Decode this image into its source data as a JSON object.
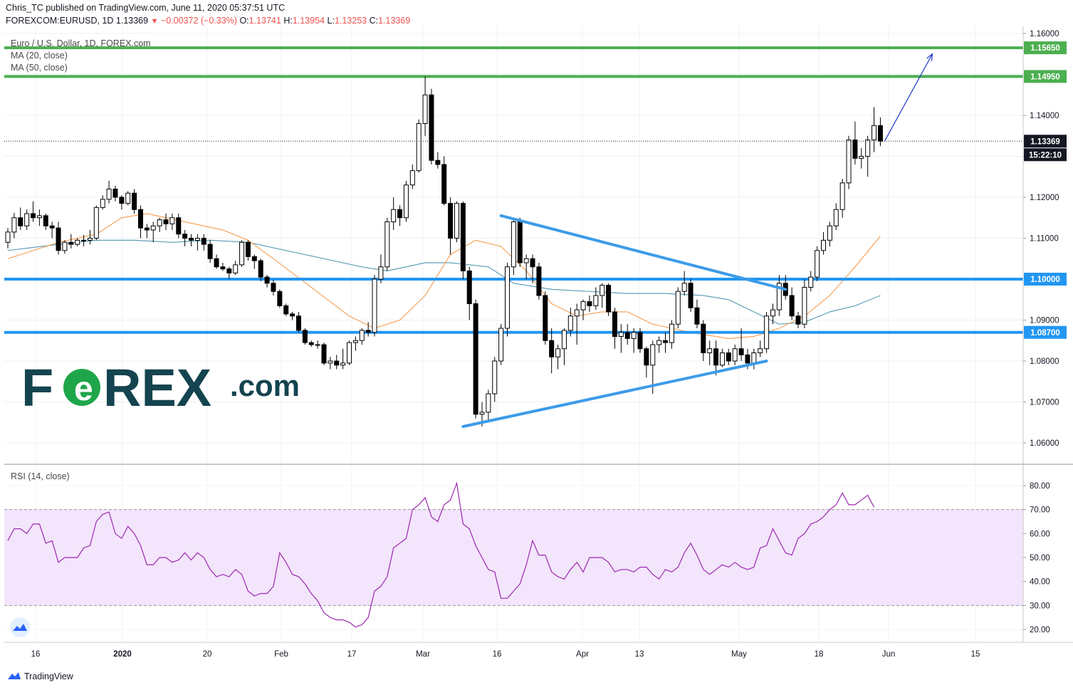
{
  "header": {
    "publisher_line": "Chris_TC published on TradingView.com, June 11, 2020 05:37:51 UTC",
    "symbol": "FOREXCOM:EURUSD, 1D",
    "last": "1.13369",
    "change": "−0.00372 (−0.33%)",
    "o_label": "O:",
    "o": "1.13741",
    "h_label": "H:",
    "h": "1.13954",
    "l_label": "L:",
    "l": "1.13253",
    "c_label": "C:",
    "c": "1.13369"
  },
  "legend": {
    "title": "Euro / U.S. Dollar, 1D, FOREX.com",
    "ma20": "MA (20, close)",
    "ma50": "MA (50, close)",
    "rsi": "RSI (14, close)"
  },
  "watermark": {
    "brand": "F0REX",
    "suffix": ".com"
  },
  "footer": {
    "brand": "TradingView"
  },
  "colors": {
    "green_level": "#4caf50",
    "blue_level": "#2196f3",
    "trendline": "#3d9be9",
    "ma20": "#f7a35c",
    "ma50": "#5f9fb8",
    "rsi_line": "#9c27b0",
    "rsi_band": "#f3e5fb",
    "watermark_dark": "#13444f",
    "watermark_green": "#1fa64a",
    "arrow": "#1e37c9"
  },
  "chart_data": {
    "type": "candlestick",
    "symbol": "EURUSD",
    "timeframe": "1D",
    "price_axis": {
      "ticks": [
        "1.16000",
        "1.14000",
        "1.13000",
        "1.12000",
        "1.11000",
        "1.09000",
        "1.08000",
        "1.07000",
        "1.06000"
      ],
      "range": [
        1.055,
        1.162
      ]
    },
    "x_axis": {
      "ticks": [
        "16",
        "2020",
        "20",
        "Feb",
        "17",
        "Mar",
        "16",
        "Apr",
        "13",
        "May",
        "18",
        "Jun",
        "15"
      ]
    },
    "levels": [
      {
        "label": "1.15650",
        "value": 1.1565,
        "color": "green"
      },
      {
        "label": "1.14950",
        "value": 1.1495,
        "color": "green"
      },
      {
        "label": "1.10000",
        "value": 1.1,
        "color": "blue"
      },
      {
        "label": "1.08700",
        "value": 1.087,
        "color": "blue"
      }
    ],
    "last_price_label": "1.13369",
    "last_price": 1.13369,
    "countdown": "15:22:10",
    "candles": [
      [
        1.109,
        1.1125,
        1.1075,
        1.1115
      ],
      [
        1.1115,
        1.1162,
        1.11,
        1.115
      ],
      [
        1.115,
        1.1175,
        1.112,
        1.113
      ],
      [
        1.113,
        1.117,
        1.112,
        1.116
      ],
      [
        1.116,
        1.119,
        1.114,
        1.115
      ],
      [
        1.115,
        1.117,
        1.113,
        1.1155
      ],
      [
        1.1155,
        1.116,
        1.112,
        1.113
      ],
      [
        1.113,
        1.114,
        1.11,
        1.1125
      ],
      [
        1.1125,
        1.114,
        1.106,
        1.107
      ],
      [
        1.107,
        1.1095,
        1.1062,
        1.109
      ],
      [
        1.109,
        1.111,
        1.1075,
        1.1085
      ],
      [
        1.1085,
        1.11,
        1.108,
        1.1095
      ],
      [
        1.1095,
        1.1108,
        1.108,
        1.1095
      ],
      [
        1.1095,
        1.112,
        1.1085,
        1.11
      ],
      [
        1.11,
        1.118,
        1.1095,
        1.1175
      ],
      [
        1.1175,
        1.1205,
        1.117,
        1.1195
      ],
      [
        1.1195,
        1.124,
        1.1185,
        1.122
      ],
      [
        1.122,
        1.1228,
        1.119,
        1.12
      ],
      [
        1.12,
        1.1205,
        1.117,
        1.1185
      ],
      [
        1.1185,
        1.1215,
        1.118,
        1.121
      ],
      [
        1.121,
        1.122,
        1.116,
        1.117
      ],
      [
        1.117,
        1.118,
        1.11,
        1.1125
      ],
      [
        1.1125,
        1.1135,
        1.11,
        1.112
      ],
      [
        1.112,
        1.114,
        1.109,
        1.113
      ],
      [
        1.113,
        1.115,
        1.1115,
        1.1145
      ],
      [
        1.1145,
        1.116,
        1.112,
        1.1135
      ],
      [
        1.1135,
        1.116,
        1.112,
        1.115
      ],
      [
        1.115,
        1.116,
        1.11,
        1.111
      ],
      [
        1.111,
        1.112,
        1.108,
        1.11
      ],
      [
        1.11,
        1.111,
        1.108,
        1.1095
      ],
      [
        1.1095,
        1.111,
        1.107,
        1.11
      ],
      [
        1.11,
        1.111,
        1.107,
        1.1085
      ],
      [
        1.1085,
        1.1095,
        1.104,
        1.105
      ],
      [
        1.105,
        1.106,
        1.1025,
        1.103
      ],
      [
        1.103,
        1.104,
        1.102,
        1.1025
      ],
      [
        1.1025,
        1.103,
        1.1,
        1.1015
      ],
      [
        1.1015,
        1.1045,
        1.101,
        1.1035
      ],
      [
        1.1035,
        1.1095,
        1.103,
        1.109
      ],
      [
        1.109,
        1.1095,
        1.1045,
        1.1055
      ],
      [
        1.1055,
        1.106,
        1.1025,
        1.1045
      ],
      [
        1.1045,
        1.105,
        1.0995,
        1.1005
      ],
      [
        1.1005,
        1.101,
        1.098,
        1.099
      ],
      [
        1.099,
        1.0998,
        1.096,
        1.097
      ],
      [
        1.097,
        1.0975,
        1.093,
        1.0935
      ],
      [
        1.0935,
        1.094,
        1.091,
        1.0915
      ],
      [
        1.0915,
        1.092,
        1.09,
        1.091
      ],
      [
        1.091,
        1.092,
        1.087,
        1.0875
      ],
      [
        1.0875,
        1.088,
        1.084,
        1.0845
      ],
      [
        1.0845,
        1.085,
        1.0835,
        1.084
      ],
      [
        1.084,
        1.085,
        1.083,
        1.084
      ],
      [
        1.084,
        1.0845,
        1.079,
        1.0795
      ],
      [
        1.0795,
        1.081,
        1.078,
        1.08
      ],
      [
        1.08,
        1.0815,
        1.078,
        1.079
      ],
      [
        1.079,
        1.083,
        1.078,
        1.0795
      ],
      [
        1.0795,
        1.085,
        1.079,
        1.0845
      ],
      [
        1.0845,
        1.086,
        1.0825,
        1.085
      ],
      [
        1.085,
        1.088,
        1.084,
        1.0875
      ],
      [
        1.0875,
        1.0895,
        1.086,
        1.087
      ],
      [
        1.087,
        1.101,
        1.086,
        1.1
      ],
      [
        1.1,
        1.106,
        1.099,
        1.103
      ],
      [
        1.103,
        1.115,
        1.102,
        1.114
      ],
      [
        1.114,
        1.12,
        1.112,
        1.117
      ],
      [
        1.117,
        1.118,
        1.113,
        1.115
      ],
      [
        1.115,
        1.124,
        1.114,
        1.123
      ],
      [
        1.123,
        1.128,
        1.122,
        1.1265
      ],
      [
        1.1265,
        1.139,
        1.126,
        1.138
      ],
      [
        1.138,
        1.1495,
        1.135,
        1.145
      ],
      [
        1.145,
        1.1465,
        1.128,
        1.129
      ],
      [
        1.129,
        1.131,
        1.127,
        1.128
      ],
      [
        1.128,
        1.13,
        1.118,
        1.1185
      ],
      [
        1.1185,
        1.12,
        1.106,
        1.11
      ],
      [
        1.11,
        1.119,
        1.109,
        1.1185
      ],
      [
        1.1185,
        1.119,
        1.1,
        1.102
      ],
      [
        1.102,
        1.103,
        1.09,
        1.094
      ],
      [
        1.094,
        1.095,
        1.066,
        1.067
      ],
      [
        1.067,
        1.07,
        1.064,
        1.0675
      ],
      [
        1.0675,
        1.073,
        1.065,
        1.072
      ],
      [
        1.072,
        1.081,
        1.07,
        1.08
      ],
      [
        1.08,
        1.089,
        1.079,
        1.088
      ],
      [
        1.088,
        1.104,
        1.086,
        1.103
      ],
      [
        1.103,
        1.115,
        1.101,
        1.114
      ],
      [
        1.114,
        1.115,
        1.103,
        1.104
      ],
      [
        1.104,
        1.106,
        1.1,
        1.105
      ],
      [
        1.105,
        1.106,
        1.099,
        1.103
      ],
      [
        1.103,
        1.104,
        1.095,
        1.096
      ],
      [
        1.096,
        1.097,
        1.084,
        1.085
      ],
      [
        1.085,
        1.088,
        1.077,
        1.081
      ],
      [
        1.081,
        1.084,
        1.078,
        1.083
      ],
      [
        1.083,
        1.088,
        1.079,
        1.0875
      ],
      [
        1.0875,
        1.093,
        1.086,
        1.091
      ],
      [
        1.091,
        1.094,
        1.084,
        1.0925
      ],
      [
        1.0925,
        1.095,
        1.09,
        1.0945
      ],
      [
        1.0945,
        1.096,
        1.092,
        1.0935
      ],
      [
        1.0935,
        1.098,
        1.0925,
        1.096
      ],
      [
        1.096,
        1.099,
        1.093,
        1.0985
      ],
      [
        1.0985,
        1.099,
        1.091,
        1.092
      ],
      [
        1.092,
        1.093,
        1.083,
        1.086
      ],
      [
        1.086,
        1.089,
        1.082,
        1.087
      ],
      [
        1.087,
        1.089,
        1.084,
        1.0855
      ],
      [
        1.0855,
        1.088,
        1.082,
        1.087
      ],
      [
        1.087,
        1.088,
        1.082,
        1.083
      ],
      [
        1.083,
        1.0835,
        1.076,
        1.079
      ],
      [
        1.079,
        1.085,
        1.072,
        1.084
      ],
      [
        1.084,
        1.086,
        1.082,
        1.085
      ],
      [
        1.085,
        1.087,
        1.082,
        1.0845
      ],
      [
        1.0845,
        1.09,
        1.083,
        1.089
      ],
      [
        1.089,
        1.098,
        1.088,
        1.097
      ],
      [
        1.097,
        1.102,
        1.096,
        1.099
      ],
      [
        1.099,
        1.1,
        1.092,
        1.093
      ],
      [
        1.093,
        1.095,
        1.088,
        1.089
      ],
      [
        1.089,
        1.09,
        1.08,
        1.082
      ],
      [
        1.082,
        1.085,
        1.079,
        1.083
      ],
      [
        1.083,
        1.085,
        1.0765,
        1.079
      ],
      [
        1.079,
        1.083,
        1.0785,
        1.082
      ],
      [
        1.082,
        1.083,
        1.079,
        1.08
      ],
      [
        1.08,
        1.084,
        1.079,
        1.083
      ],
      [
        1.083,
        1.088,
        1.08,
        1.0815
      ],
      [
        1.0815,
        1.083,
        1.078,
        1.0795
      ],
      [
        1.0795,
        1.083,
        1.078,
        1.082
      ],
      [
        1.082,
        1.085,
        1.081,
        1.083
      ],
      [
        1.083,
        1.092,
        1.082,
        1.091
      ],
      [
        1.091,
        1.094,
        1.089,
        1.0925
      ],
      [
        1.0925,
        1.101,
        1.091,
        1.099
      ],
      [
        1.099,
        1.101,
        1.095,
        1.096
      ],
      [
        1.096,
        1.098,
        1.09,
        1.091
      ],
      [
        1.091,
        1.092,
        1.088,
        1.089
      ],
      [
        1.089,
        1.1,
        1.088,
        1.098
      ],
      [
        1.098,
        1.102,
        1.097,
        1.1005
      ],
      [
        1.1005,
        1.108,
        1.0995,
        1.107
      ],
      [
        1.107,
        1.1115,
        1.106,
        1.1095
      ],
      [
        1.1095,
        1.114,
        1.108,
        1.113
      ],
      [
        1.113,
        1.1185,
        1.112,
        1.117
      ],
      [
        1.117,
        1.1245,
        1.115,
        1.1235
      ],
      [
        1.1235,
        1.135,
        1.122,
        1.134
      ],
      [
        1.134,
        1.1385,
        1.128,
        1.1295
      ],
      [
        1.1295,
        1.132,
        1.127,
        1.13
      ],
      [
        1.13,
        1.135,
        1.125,
        1.134
      ],
      [
        1.134,
        1.142,
        1.131,
        1.1375
      ],
      [
        1.1375,
        1.1395,
        1.1325,
        1.1337
      ]
    ],
    "ma20": [
      [
        0,
        1.105
      ],
      [
        8,
        1.109
      ],
      [
        14,
        1.111
      ],
      [
        18,
        1.115
      ],
      [
        22,
        1.116
      ],
      [
        28,
        1.114
      ],
      [
        34,
        1.112
      ],
      [
        38,
        1.1095
      ],
      [
        42,
        1.105
      ],
      [
        48,
        1.098
      ],
      [
        54,
        1.091
      ],
      [
        58,
        1.088
      ],
      [
        62,
        1.09
      ],
      [
        66,
        1.096
      ],
      [
        70,
        1.106
      ],
      [
        74,
        1.1095
      ],
      [
        78,
        1.108
      ],
      [
        82,
        1.102
      ],
      [
        86,
        1.094
      ],
      [
        90,
        1.091
      ],
      [
        94,
        1.092
      ],
      [
        98,
        1.092
      ],
      [
        102,
        1.089
      ],
      [
        108,
        1.087
      ],
      [
        114,
        1.0855
      ],
      [
        118,
        1.086
      ],
      [
        122,
        1.088
      ],
      [
        126,
        1.091
      ],
      [
        130,
        1.096
      ],
      [
        134,
        1.103
      ],
      [
        138,
        1.1105
      ]
    ],
    "ma50": [
      [
        0,
        1.107
      ],
      [
        8,
        1.1085
      ],
      [
        14,
        1.1095
      ],
      [
        20,
        1.1095
      ],
      [
        26,
        1.109
      ],
      [
        32,
        1.1095
      ],
      [
        38,
        1.109
      ],
      [
        44,
        1.107
      ],
      [
        50,
        1.105
      ],
      [
        56,
        1.103
      ],
      [
        60,
        1.102
      ],
      [
        66,
        1.104
      ],
      [
        70,
        1.104
      ],
      [
        76,
        1.103
      ],
      [
        80,
        1.099
      ],
      [
        86,
        1.0975
      ],
      [
        92,
        1.097
      ],
      [
        98,
        1.0965
      ],
      [
        104,
        1.0965
      ],
      [
        110,
        1.096
      ],
      [
        114,
        1.095
      ],
      [
        118,
        1.092
      ],
      [
        122,
        1.089
      ],
      [
        126,
        1.0895
      ],
      [
        130,
        1.092
      ],
      [
        134,
        1.0935
      ],
      [
        138,
        1.096
      ]
    ],
    "trendlines": [
      {
        "from": [
          78,
          1.1155
        ],
        "to": [
          123,
          1.0975
        ]
      },
      {
        "from": [
          72,
          1.064
        ],
        "to": [
          120,
          1.08
        ]
      }
    ],
    "projection_arrow": {
      "from": [
        138,
        1.1337
      ],
      "to": [
        146,
        1.155
      ]
    },
    "rsi": {
      "label": "RSI (14, close)",
      "ticks": [
        "80.00",
        "70.00",
        "60.00",
        "50.00",
        "40.00",
        "30.00",
        "20.00"
      ],
      "band": [
        30,
        70
      ],
      "range": [
        15,
        83
      ],
      "values": [
        57,
        62,
        62,
        60,
        64,
        64,
        56,
        57,
        48,
        50,
        50,
        50,
        54,
        55,
        65,
        68,
        69,
        60,
        58,
        63,
        60,
        55,
        47,
        47,
        50,
        50,
        48,
        49,
        52,
        49,
        52,
        50,
        45,
        42,
        43,
        42,
        45,
        43,
        36,
        34,
        35,
        35,
        38,
        52,
        48,
        43,
        42,
        39,
        35,
        32,
        27,
        25,
        24,
        24,
        23,
        21,
        22,
        25,
        36,
        38,
        42,
        54,
        56,
        58,
        70,
        72,
        75,
        67,
        65,
        72,
        74,
        81,
        64,
        62,
        55,
        50,
        45,
        44,
        33,
        33,
        36,
        39,
        47,
        57,
        51,
        51,
        44,
        42,
        41,
        45,
        48,
        44,
        50,
        50,
        50,
        48,
        44,
        45,
        45,
        44,
        46,
        46,
        43,
        41,
        45,
        44,
        46,
        52,
        56,
        51,
        45,
        43,
        45,
        47,
        46,
        48,
        46,
        45,
        46,
        54,
        55,
        62,
        57,
        52,
        51,
        58,
        60,
        64,
        65,
        67,
        70,
        72,
        77,
        72,
        72,
        74,
        76,
        71
      ]
    }
  }
}
